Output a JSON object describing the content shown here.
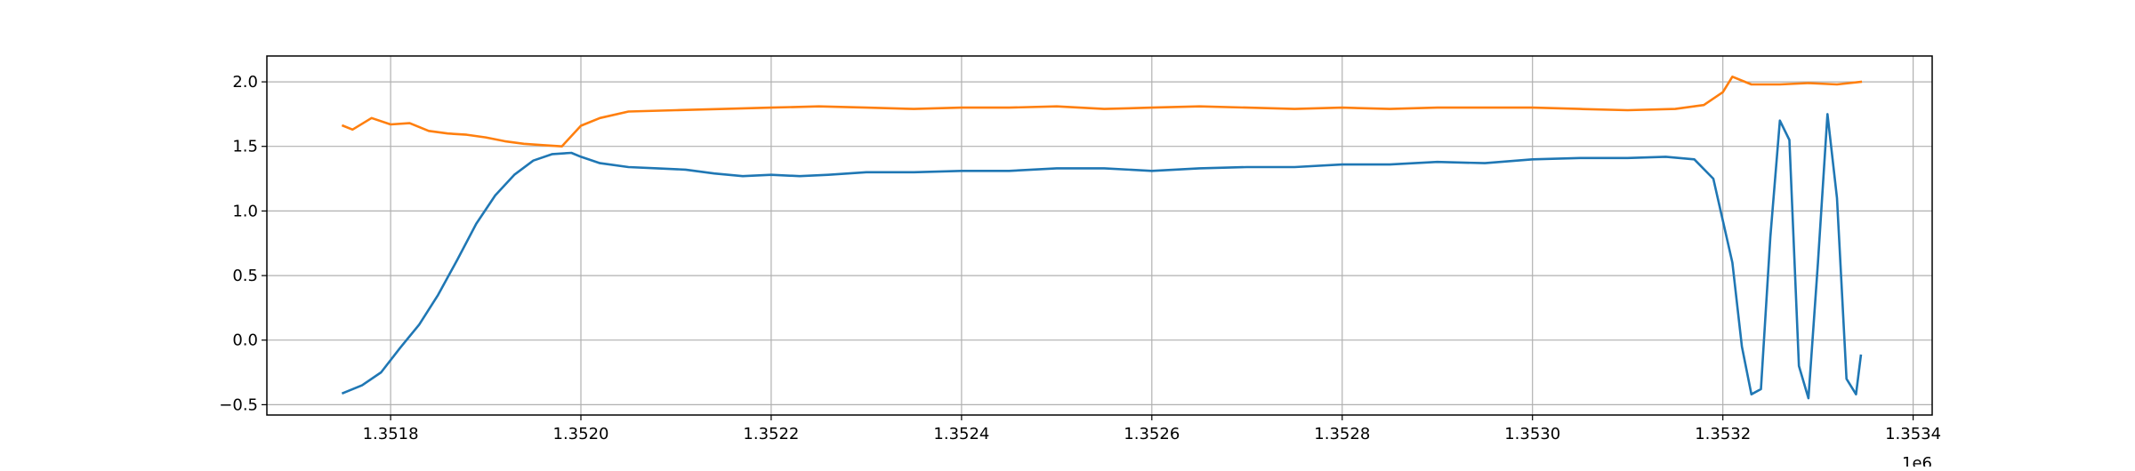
{
  "chart_data": {
    "type": "line",
    "title": "",
    "xlabel": "",
    "ylabel": "",
    "x_offset_label": "1e6",
    "xlim": [
      1.35167,
      1.35342
    ],
    "ylim": [
      -0.58,
      2.2
    ],
    "x_ticks": [
      {
        "value": 1.3518,
        "label": "1.3518"
      },
      {
        "value": 1.352,
        "label": "1.3520"
      },
      {
        "value": 1.3522,
        "label": "1.3522"
      },
      {
        "value": 1.3524,
        "label": "1.3524"
      },
      {
        "value": 1.3526,
        "label": "1.3526"
      },
      {
        "value": 1.3528,
        "label": "1.3528"
      },
      {
        "value": 1.353,
        "label": "1.3530"
      },
      {
        "value": 1.3532,
        "label": "1.3532"
      },
      {
        "value": 1.3534,
        "label": "1.3534"
      }
    ],
    "y_ticks": [
      {
        "value": -0.5,
        "label": "−0.5"
      },
      {
        "value": 0.0,
        "label": "0.0"
      },
      {
        "value": 0.5,
        "label": "0.5"
      },
      {
        "value": 1.0,
        "label": "1.0"
      },
      {
        "value": 1.5,
        "label": "1.5"
      },
      {
        "value": 2.0,
        "label": "2.0"
      }
    ],
    "grid": true,
    "legend": "none",
    "series": [
      {
        "color": "#1f77b4",
        "x": [
          1.35175,
          1.35177,
          1.35179,
          1.35181,
          1.35183,
          1.35185,
          1.35187,
          1.35189,
          1.35191,
          1.35193,
          1.35195,
          1.35197,
          1.35199,
          1.352,
          1.35202,
          1.35205,
          1.35208,
          1.35211,
          1.35214,
          1.35217,
          1.3522,
          1.35223,
          1.35226,
          1.3523,
          1.35235,
          1.3524,
          1.35245,
          1.3525,
          1.35255,
          1.3526,
          1.35265,
          1.3527,
          1.35275,
          1.3528,
          1.35285,
          1.3529,
          1.35295,
          1.353,
          1.35305,
          1.3531,
          1.35314,
          1.35317,
          1.35319,
          1.35321,
          1.35322,
          1.35323,
          1.35324,
          1.35325,
          1.35326,
          1.35327,
          1.35328,
          1.35329,
          1.3533,
          1.35331,
          1.35332,
          1.35333,
          1.35334,
          1.353345
        ],
        "y": [
          -0.41,
          -0.35,
          -0.25,
          -0.06,
          0.12,
          0.35,
          0.62,
          0.9,
          1.12,
          1.28,
          1.39,
          1.44,
          1.45,
          1.42,
          1.37,
          1.34,
          1.33,
          1.32,
          1.29,
          1.27,
          1.28,
          1.27,
          1.28,
          1.3,
          1.3,
          1.31,
          1.31,
          1.33,
          1.33,
          1.31,
          1.33,
          1.34,
          1.34,
          1.36,
          1.36,
          1.38,
          1.37,
          1.4,
          1.41,
          1.41,
          1.42,
          1.4,
          1.25,
          0.6,
          -0.05,
          -0.42,
          -0.38,
          0.8,
          1.7,
          1.55,
          -0.2,
          -0.45,
          0.6,
          1.75,
          1.1,
          -0.3,
          -0.42,
          -0.12
        ]
      },
      {
        "color": "#ff7f0e",
        "x": [
          1.35175,
          1.35176,
          1.35178,
          1.3518,
          1.35182,
          1.35184,
          1.35186,
          1.35188,
          1.3519,
          1.35192,
          1.35194,
          1.35196,
          1.35198,
          1.352,
          1.35202,
          1.35205,
          1.3521,
          1.35215,
          1.3522,
          1.35225,
          1.3523,
          1.35235,
          1.3524,
          1.35245,
          1.3525,
          1.35255,
          1.3526,
          1.35265,
          1.3527,
          1.35275,
          1.3528,
          1.35285,
          1.3529,
          1.35295,
          1.353,
          1.35305,
          1.3531,
          1.35315,
          1.35318,
          1.3532,
          1.35321,
          1.35323,
          1.35326,
          1.35329,
          1.35332,
          1.353345
        ],
        "y": [
          1.66,
          1.63,
          1.72,
          1.67,
          1.68,
          1.62,
          1.6,
          1.59,
          1.57,
          1.54,
          1.52,
          1.51,
          1.5,
          1.66,
          1.72,
          1.77,
          1.78,
          1.79,
          1.8,
          1.81,
          1.8,
          1.79,
          1.8,
          1.8,
          1.81,
          1.79,
          1.8,
          1.81,
          1.8,
          1.79,
          1.8,
          1.79,
          1.8,
          1.8,
          1.8,
          1.79,
          1.78,
          1.79,
          1.82,
          1.92,
          2.04,
          1.98,
          1.98,
          1.99,
          1.98,
          2.0
        ]
      }
    ]
  }
}
